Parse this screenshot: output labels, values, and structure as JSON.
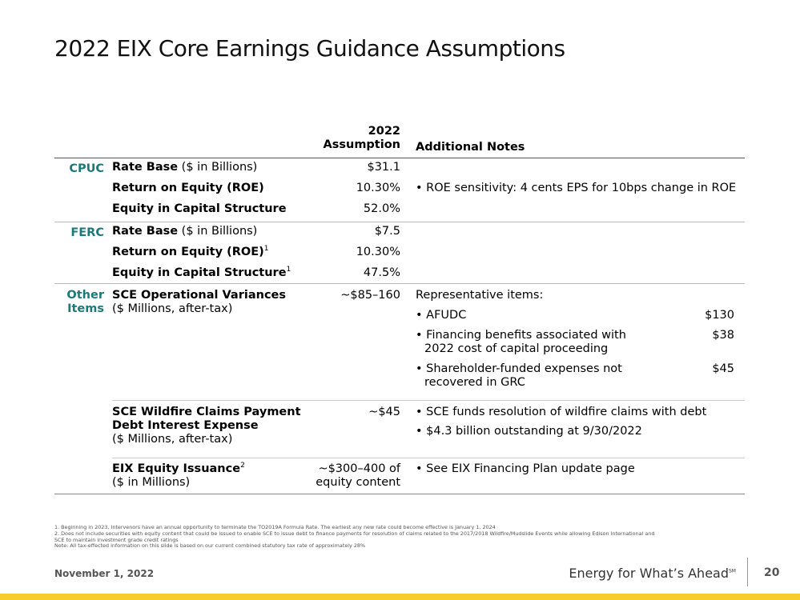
{
  "title": "2022 EIX Core Earnings Guidance Assumptions",
  "header": {
    "year": "2022",
    "assumption": "Assumption",
    "notes": "Additional Notes"
  },
  "cpuc": {
    "label": "CPUC",
    "rate_base_label": "Rate Base",
    "rate_base_unit": " ($ in Billions)",
    "rate_base_val": "$31.1",
    "roe_label": "Return on Equity (ROE)",
    "roe_val": "10.30%",
    "roe_note": "• ROE sensitivity: 4 cents EPS for 10bps change in ROE",
    "equity_label": "Equity in Capital Structure",
    "equity_val": "52.0%"
  },
  "ferc": {
    "label": "FERC",
    "rate_base_label": "Rate Base",
    "rate_base_unit": " ($ in Billions)",
    "rate_base_val": "$7.5",
    "roe_label": "Return on Equity (ROE)",
    "roe_sup": "1",
    "roe_val": "10.30%",
    "equity_label": "Equity in Capital Structure",
    "equity_sup": "1",
    "equity_val": "47.5%"
  },
  "other": {
    "label_line1": "Other",
    "label_line2": "Items",
    "ops_label": "SCE Operational Variances",
    "ops_unit": "($ Millions, after-tax)",
    "ops_val": "~$85–160",
    "ops_intro": "Representative items:",
    "ops_items": [
      {
        "text": "• AFUDC",
        "text2": "",
        "amount": "$130"
      },
      {
        "text": "• Financing benefits associated with",
        "text2": "2022 cost of capital proceeding",
        "amount": "$38"
      },
      {
        "text": "• Shareholder-funded expenses not",
        "text2": "recovered in GRC",
        "amount": "$45"
      }
    ],
    "wildfire_label1": "SCE Wildfire Claims Payment",
    "wildfire_label2": "Debt Interest Expense",
    "wildfire_unit": "($ Millions, after-tax)",
    "wildfire_val": "~$45",
    "wildfire_note1": "• SCE funds resolution of wildfire claims with debt",
    "wildfire_note2": "• $4.3 billion outstanding at 9/30/2022",
    "equity_label": "EIX Equity Issuance",
    "equity_sup": "2",
    "equity_unit": "($ in Millions)",
    "equity_val1": "~$300–400 of",
    "equity_val2": "equity content",
    "equity_note": "• See EIX Financing Plan update page"
  },
  "footnotes": {
    "f1": "1.  Beginning in 2023, Intervenors have an annual opportunity to terminate the TO2019A Formula Rate. The earliest any new rate could become effective is January 1, 2024",
    "f2": "2.  Does not include securities with equity content that could be issued to enable SCE to issue debt to finance payments for resolution of claims related to the 2017/2018 Wildfire/Mudslide Events while allowing Edison International and",
    "f2b": "     SCE to maintain investment grade credit ratings",
    "note": "Note: All tax-effected information on this slide is based on our current combined statutory tax rate of approximately 28%"
  },
  "footer": {
    "date": "November 1, 2022",
    "tagline": "Energy for What’s Ahead",
    "tagline_mark": "SM",
    "page": "20"
  },
  "colors": {
    "section_label": "#1a7a78",
    "bar": "#f6cd2a"
  }
}
